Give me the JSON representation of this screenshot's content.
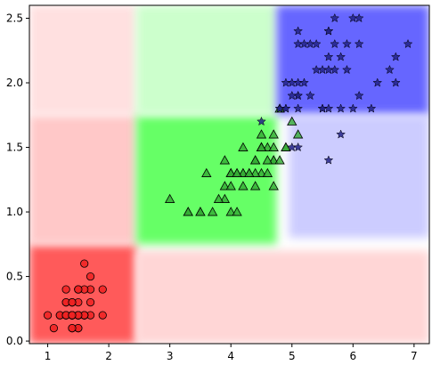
{
  "chart_data": {
    "type": "scatter",
    "title": "",
    "xlabel": "",
    "ylabel": "",
    "xlim": [
      0.7,
      7.25
    ],
    "ylim": [
      -0.02,
      2.6
    ],
    "x_ticks": [
      1,
      2,
      3,
      4,
      5,
      6,
      7
    ],
    "y_ticks": [
      0.0,
      0.5,
      1.0,
      1.5,
      2.0,
      2.5
    ],
    "x_tick_labels": [
      "1",
      "2",
      "3",
      "4",
      "5",
      "6",
      "7"
    ],
    "y_tick_labels": [
      "0.0",
      "0.5",
      "1.0",
      "1.5",
      "2.0",
      "2.5"
    ],
    "grid": false,
    "legend": null,
    "regions": [
      {
        "class": "red",
        "x": [
          0.7,
          2.45
        ],
        "y": [
          -0.02,
          0.75
        ],
        "intensity": "strong",
        "color": "#ff5a5a"
      },
      {
        "class": "red",
        "x": [
          0.7,
          2.45
        ],
        "y": [
          0.75,
          1.75
        ],
        "intensity": "medium",
        "color": "#ffc8c8"
      },
      {
        "class": "red",
        "x": [
          0.7,
          2.45
        ],
        "y": [
          1.75,
          2.6
        ],
        "intensity": "light",
        "color": "#ffe0e0"
      },
      {
        "class": "red",
        "x": [
          2.45,
          7.25
        ],
        "y": [
          -0.02,
          0.7
        ],
        "intensity": "light",
        "color": "#ffd6d6"
      },
      {
        "class": "green",
        "x": [
          2.45,
          4.75
        ],
        "y": [
          0.75,
          1.75
        ],
        "intensity": "strong",
        "color": "#66ff66"
      },
      {
        "class": "green",
        "x": [
          2.45,
          4.75
        ],
        "y": [
          1.75,
          2.6
        ],
        "intensity": "light",
        "color": "#ccffcc"
      },
      {
        "class": "blue",
        "x": [
          4.75,
          7.25
        ],
        "y": [
          1.75,
          2.6
        ],
        "intensity": "strong",
        "color": "#6666ff"
      },
      {
        "class": "blue",
        "x": [
          4.95,
          7.25
        ],
        "y": [
          0.8,
          1.75
        ],
        "intensity": "light",
        "color": "#ccccff"
      }
    ],
    "series": [
      {
        "class": "red",
        "marker": "circle",
        "color": "#ee2222",
        "points": [
          [
            1.4,
            0.2
          ],
          [
            1.4,
            0.2
          ],
          [
            1.3,
            0.2
          ],
          [
            1.5,
            0.2
          ],
          [
            1.4,
            0.2
          ],
          [
            1.7,
            0.4
          ],
          [
            1.4,
            0.3
          ],
          [
            1.5,
            0.2
          ],
          [
            1.4,
            0.2
          ],
          [
            1.5,
            0.1
          ],
          [
            1.5,
            0.2
          ],
          [
            1.6,
            0.2
          ],
          [
            1.4,
            0.1
          ],
          [
            1.1,
            0.1
          ],
          [
            1.2,
            0.2
          ],
          [
            1.5,
            0.4
          ],
          [
            1.3,
            0.4
          ],
          [
            1.4,
            0.3
          ],
          [
            1.7,
            0.3
          ],
          [
            1.5,
            0.3
          ],
          [
            1.7,
            0.2
          ],
          [
            1.5,
            0.4
          ],
          [
            1.0,
            0.2
          ],
          [
            1.7,
            0.5
          ],
          [
            1.9,
            0.2
          ],
          [
            1.6,
            0.2
          ],
          [
            1.6,
            0.4
          ],
          [
            1.5,
            0.2
          ],
          [
            1.4,
            0.2
          ],
          [
            1.6,
            0.2
          ],
          [
            1.6,
            0.2
          ],
          [
            1.5,
            0.4
          ],
          [
            1.5,
            0.1
          ],
          [
            1.4,
            0.2
          ],
          [
            1.5,
            0.2
          ],
          [
            1.2,
            0.2
          ],
          [
            1.3,
            0.2
          ],
          [
            1.4,
            0.1
          ],
          [
            1.3,
            0.2
          ],
          [
            1.5,
            0.2
          ],
          [
            1.3,
            0.3
          ],
          [
            1.3,
            0.3
          ],
          [
            1.3,
            0.2
          ],
          [
            1.6,
            0.6
          ],
          [
            1.9,
            0.4
          ],
          [
            1.4,
            0.3
          ],
          [
            1.6,
            0.2
          ],
          [
            1.4,
            0.2
          ],
          [
            1.5,
            0.2
          ],
          [
            1.4,
            0.2
          ]
        ]
      },
      {
        "class": "green",
        "marker": "triangle",
        "color": "#33aa33",
        "points": [
          [
            4.7,
            1.4
          ],
          [
            4.5,
            1.5
          ],
          [
            4.9,
            1.5
          ],
          [
            4.0,
            1.3
          ],
          [
            4.6,
            1.5
          ],
          [
            4.5,
            1.3
          ],
          [
            4.7,
            1.6
          ],
          [
            3.3,
            1.0
          ],
          [
            4.6,
            1.3
          ],
          [
            3.9,
            1.4
          ],
          [
            3.5,
            1.0
          ],
          [
            4.2,
            1.5
          ],
          [
            4.0,
            1.0
          ],
          [
            4.7,
            1.4
          ],
          [
            3.6,
            1.3
          ],
          [
            4.4,
            1.4
          ],
          [
            4.5,
            1.5
          ],
          [
            4.1,
            1.0
          ],
          [
            4.5,
            1.5
          ],
          [
            3.9,
            1.1
          ],
          [
            4.8,
            1.8
          ],
          [
            4.0,
            1.3
          ],
          [
            4.9,
            1.5
          ],
          [
            4.7,
            1.2
          ],
          [
            4.3,
            1.3
          ],
          [
            4.4,
            1.4
          ],
          [
            4.8,
            1.4
          ],
          [
            5.0,
            1.7
          ],
          [
            4.5,
            1.5
          ],
          [
            3.5,
            1.0
          ],
          [
            3.8,
            1.1
          ],
          [
            3.7,
            1.0
          ],
          [
            3.9,
            1.2
          ],
          [
            5.1,
            1.6
          ],
          [
            4.5,
            1.5
          ],
          [
            4.5,
            1.6
          ],
          [
            4.7,
            1.5
          ],
          [
            4.4,
            1.3
          ],
          [
            4.1,
            1.3
          ],
          [
            4.0,
            1.3
          ],
          [
            4.4,
            1.2
          ],
          [
            4.6,
            1.4
          ],
          [
            4.0,
            1.2
          ],
          [
            3.3,
            1.0
          ],
          [
            4.2,
            1.3
          ],
          [
            4.2,
            1.2
          ],
          [
            4.2,
            1.3
          ],
          [
            4.3,
            1.3
          ],
          [
            3.0,
            1.1
          ],
          [
            4.1,
            1.3
          ]
        ]
      },
      {
        "class": "blue",
        "marker": "star",
        "color": "#222288",
        "points": [
          [
            6.0,
            2.5
          ],
          [
            5.1,
            1.9
          ],
          [
            5.9,
            2.1
          ],
          [
            5.6,
            1.8
          ],
          [
            5.8,
            2.2
          ],
          [
            6.6,
            2.1
          ],
          [
            4.5,
            1.7
          ],
          [
            6.3,
            1.8
          ],
          [
            5.8,
            1.8
          ],
          [
            6.1,
            2.5
          ],
          [
            5.1,
            2.0
          ],
          [
            5.3,
            1.9
          ],
          [
            5.5,
            2.1
          ],
          [
            5.0,
            2.0
          ],
          [
            5.1,
            2.4
          ],
          [
            5.3,
            2.3
          ],
          [
            5.5,
            1.8
          ],
          [
            6.7,
            2.2
          ],
          [
            6.9,
            2.3
          ],
          [
            5.0,
            1.5
          ],
          [
            5.7,
            2.3
          ],
          [
            4.9,
            2.0
          ],
          [
            6.7,
            2.0
          ],
          [
            4.9,
            1.8
          ],
          [
            5.7,
            2.1
          ],
          [
            6.0,
            1.8
          ],
          [
            4.8,
            1.8
          ],
          [
            4.9,
            1.8
          ],
          [
            5.6,
            2.1
          ],
          [
            5.8,
            1.6
          ],
          [
            6.1,
            1.9
          ],
          [
            6.4,
            2.0
          ],
          [
            5.6,
            2.2
          ],
          [
            5.1,
            1.5
          ],
          [
            5.6,
            1.4
          ],
          [
            6.1,
            2.3
          ],
          [
            5.6,
            2.4
          ],
          [
            5.5,
            1.8
          ],
          [
            4.8,
            1.8
          ],
          [
            5.4,
            2.1
          ],
          [
            5.6,
            2.4
          ],
          [
            5.1,
            2.3
          ],
          [
            5.1,
            1.9
          ],
          [
            5.9,
            2.3
          ],
          [
            5.7,
            2.5
          ],
          [
            5.2,
            2.3
          ],
          [
            5.0,
            1.9
          ],
          [
            5.2,
            2.0
          ],
          [
            5.4,
            2.3
          ],
          [
            5.1,
            1.8
          ]
        ]
      }
    ]
  }
}
